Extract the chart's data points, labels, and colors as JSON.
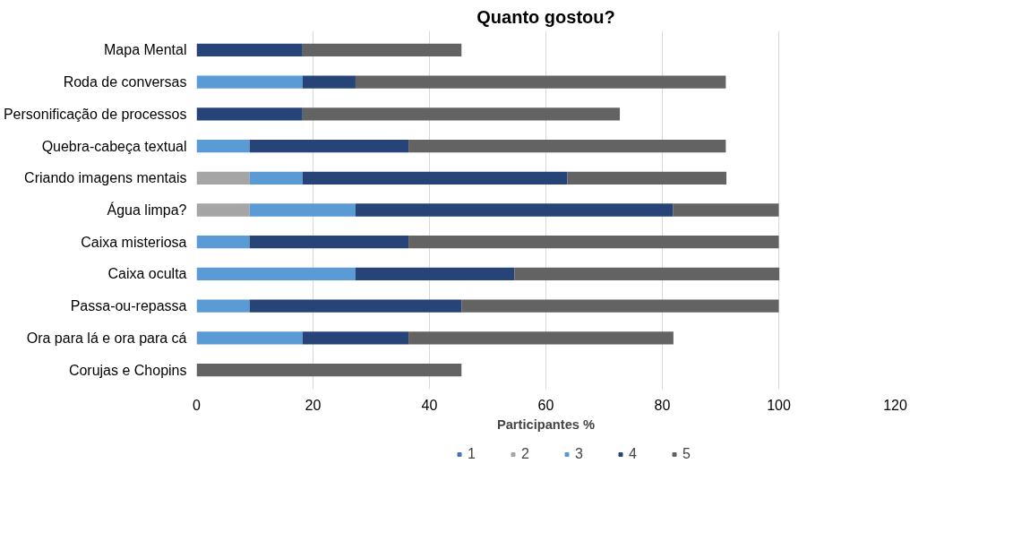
{
  "chart_data": {
    "type": "bar",
    "orientation": "horizontal",
    "stacked": true,
    "title": "Quanto gostou?",
    "xlabel": "Participantes %",
    "categories": [
      "Mapa Mental",
      "Roda de conversas",
      "Personificação de processos",
      "Quebra-cabeça textual",
      "Criando imagens mentais",
      "Água limpa?",
      "Caixa misteriosa",
      "Caixa oculta",
      "Passa-ou-repassa",
      "Ora para lá e ora para cá",
      "Corujas e Chopins"
    ],
    "series": [
      {
        "name": "1",
        "color": "#4472c4",
        "values": [
          0,
          0,
          0,
          0,
          0,
          0,
          0,
          0,
          0,
          0,
          0
        ]
      },
      {
        "name": "2",
        "color": "#a5a5a5",
        "values": [
          0,
          0,
          0,
          0,
          9.1,
          9.1,
          0,
          0,
          0,
          0,
          0
        ]
      },
      {
        "name": "3",
        "color": "#5b9bd5",
        "values": [
          0,
          18.2,
          0,
          9.1,
          9.1,
          18.2,
          9.1,
          27.3,
          9.1,
          18.2,
          0
        ]
      },
      {
        "name": "4",
        "color": "#264478",
        "values": [
          18.2,
          9.1,
          18.2,
          27.3,
          45.5,
          54.5,
          27.3,
          27.3,
          36.4,
          18.2,
          0
        ]
      },
      {
        "name": "5",
        "color": "#636363",
        "values": [
          27.3,
          63.6,
          54.5,
          54.5,
          27.3,
          18.2,
          63.6,
          45.5,
          54.5,
          45.5,
          45.5
        ]
      }
    ],
    "xlim": [
      0,
      120
    ],
    "xticks": [
      0,
      20,
      40,
      60,
      80,
      100,
      120
    ],
    "grid": "x",
    "legend": "bottom"
  }
}
